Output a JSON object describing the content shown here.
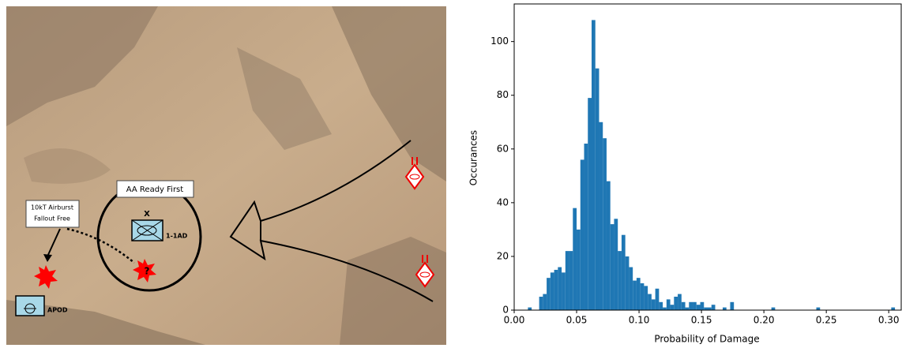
{
  "map": {
    "zone_label": "AA Ready First",
    "callout_lines": [
      "10kT Airburst",
      "Fallout Free"
    ],
    "unit_echelon": "X",
    "unit_label": "1-1AD",
    "airport_label": "APOD",
    "unknown_mark": "?"
  },
  "chart_data": {
    "type": "histogram",
    "xlabel": "Probability of Damage",
    "ylabel": "Occurances",
    "color": "#1f77b4",
    "bins": [
      0.005,
      0.008,
      0.011,
      0.014,
      0.017,
      0.02,
      0.023,
      0.026,
      0.029,
      0.032,
      0.035,
      0.038,
      0.041,
      0.044,
      0.047,
      0.05,
      0.053,
      0.056,
      0.059,
      0.062,
      0.065,
      0.068,
      0.071,
      0.074,
      0.077,
      0.08,
      0.083,
      0.086,
      0.089,
      0.092,
      0.095,
      0.098,
      0.101,
      0.104,
      0.107,
      0.11,
      0.113,
      0.116,
      0.119,
      0.122,
      0.125,
      0.128,
      0.131,
      0.134,
      0.137,
      0.14,
      0.143,
      0.146,
      0.149,
      0.152,
      0.155,
      0.158,
      0.161,
      0.164,
      0.167,
      0.17,
      0.173,
      0.176,
      0.179,
      0.182,
      0.185,
      0.188,
      0.191,
      0.194,
      0.197,
      0.2,
      0.203,
      0.206,
      0.209,
      0.212,
      0.215,
      0.218,
      0.221,
      0.224,
      0.227,
      0.23,
      0.233,
      0.236,
      0.239,
      0.242,
      0.245,
      0.248,
      0.251,
      0.254,
      0.257,
      0.26,
      0.263,
      0.266,
      0.269,
      0.272,
      0.275,
      0.278,
      0.281,
      0.284,
      0.287,
      0.29,
      0.293,
      0.296,
      0.299,
      0.302,
      0.305
    ],
    "values": [
      0,
      0,
      1,
      0,
      0,
      5,
      6,
      12,
      14,
      15,
      16,
      14,
      22,
      22,
      38,
      30,
      56,
      62,
      79,
      108,
      90,
      70,
      64,
      48,
      32,
      34,
      22,
      28,
      20,
      16,
      11,
      12,
      10,
      9,
      6,
      4,
      8,
      3,
      1,
      4,
      2,
      5,
      6,
      3,
      1,
      3,
      3,
      2,
      3,
      1,
      1,
      2,
      0,
      0,
      1,
      0,
      3,
      0,
      0,
      0,
      0,
      0,
      0,
      0,
      0,
      0,
      0,
      1,
      0,
      0,
      0,
      0,
      0,
      0,
      0,
      0,
      0,
      0,
      0,
      1,
      0,
      0,
      0,
      0,
      0,
      0,
      0,
      0,
      0,
      0,
      0,
      0,
      0,
      0,
      0,
      0,
      0,
      0,
      0,
      1
    ],
    "xlim": [
      0,
      0.31
    ],
    "ylim": [
      0,
      114
    ],
    "xticks": [
      {
        "value": 0,
        "label": "0.00"
      },
      0.05,
      {
        "value": 0.1,
        "label": "0.10"
      },
      0.15,
      {
        "value": 0.2,
        "label": "0.20"
      },
      0.25,
      {
        "value": 0.3,
        "label": "0.30"
      }
    ],
    "yticks": [
      0,
      20,
      40,
      60,
      80,
      100
    ]
  }
}
